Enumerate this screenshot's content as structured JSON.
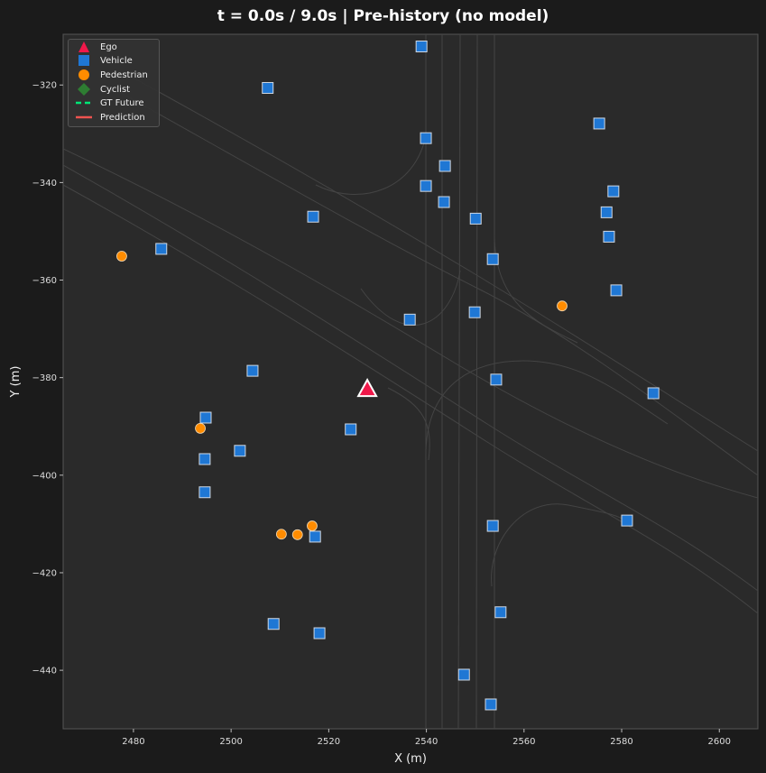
{
  "title": "t = 0.0s / 9.0s  |  Pre-history (no model)",
  "chart_data": {
    "type": "scatter",
    "title": "t = 0.0s / 9.0s  |  Pre-history (no model)",
    "xlabel": "X (m)",
    "ylabel": "Y (m)",
    "xlim": [
      2465.6,
      2607.9
    ],
    "ylim": [
      -452.0,
      -309.6
    ],
    "xticks": [
      2480,
      2500,
      2520,
      2540,
      2560,
      2580,
      2600
    ],
    "yticks": [
      -320,
      -340,
      -360,
      -380,
      -400,
      -420,
      -440
    ],
    "grid": false,
    "legend_position": "top-left",
    "legend": [
      "Ego",
      "Vehicle",
      "Pedestrian",
      "Cyclist",
      "GT Future",
      "Prediction"
    ],
    "colors": {
      "ego": "#f0184a",
      "vehicle": "#1f77d4",
      "pedestrian": "#ff8c00",
      "cyclist": "#2e7d32",
      "gt_future": "#00e676",
      "prediction": "#ef5350",
      "background": "#2a2a2a"
    },
    "series": [
      {
        "name": "Ego",
        "marker": "triangle",
        "points": [
          [
            2527.9,
            -382.3
          ]
        ]
      },
      {
        "name": "Vehicle",
        "marker": "square",
        "points": [
          [
            2539.0,
            -312.1
          ],
          [
            2507.5,
            -320.6
          ],
          [
            2575.4,
            -327.9
          ],
          [
            2539.9,
            -330.9
          ],
          [
            2543.8,
            -336.6
          ],
          [
            2539.9,
            -340.7
          ],
          [
            2543.6,
            -344.0
          ],
          [
            2578.3,
            -341.8
          ],
          [
            2576.9,
            -346.1
          ],
          [
            2516.8,
            -347.0
          ],
          [
            2550.1,
            -347.4
          ],
          [
            2577.4,
            -351.1
          ],
          [
            2485.7,
            -353.6
          ],
          [
            2553.6,
            -355.7
          ],
          [
            2578.9,
            -362.1
          ],
          [
            2536.6,
            -368.1
          ],
          [
            2549.9,
            -366.6
          ],
          [
            2504.4,
            -378.6
          ],
          [
            2554.3,
            -380.4
          ],
          [
            2586.5,
            -383.2
          ],
          [
            2494.8,
            -388.2
          ],
          [
            2524.5,
            -390.6
          ],
          [
            2501.8,
            -395.0
          ],
          [
            2494.6,
            -396.7
          ],
          [
            2494.6,
            -403.5
          ],
          [
            2553.6,
            -410.4
          ],
          [
            2581.1,
            -409.3
          ],
          [
            2517.2,
            -412.6
          ],
          [
            2555.2,
            -428.1
          ],
          [
            2508.7,
            -430.5
          ],
          [
            2518.1,
            -432.4
          ],
          [
            2547.7,
            -440.9
          ],
          [
            2553.2,
            -447.0
          ]
        ]
      },
      {
        "name": "Pedestrian",
        "marker": "circle",
        "points": [
          [
            2477.6,
            -355.1
          ],
          [
            2567.8,
            -365.3
          ],
          [
            2493.7,
            -390.4
          ],
          [
            2510.3,
            -412.1
          ],
          [
            2513.6,
            -412.2
          ],
          [
            2516.6,
            -410.4
          ]
        ]
      }
    ]
  }
}
